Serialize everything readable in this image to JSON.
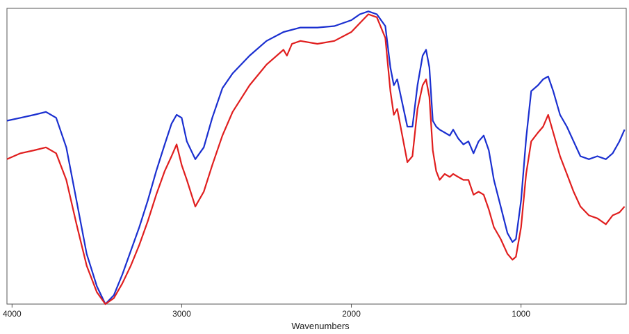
{
  "chart_data": {
    "type": "line",
    "xlabel": "Wavenumbers",
    "ylabel": "",
    "xlim": [
      4030,
      380
    ],
    "ylim": [
      0,
      100
    ],
    "x_reversed": true,
    "x_ticks": [
      4000,
      3000,
      2000,
      1000
    ],
    "x_tick_labels": [
      "4000",
      "3000",
      "2000",
      "1000"
    ],
    "y_ticks_shown": false,
    "grid": false,
    "legend": "none",
    "series": [
      {
        "color": "#1a2fd0",
        "points": [
          [
            4030,
            62
          ],
          [
            3950,
            63
          ],
          [
            3870,
            64
          ],
          [
            3800,
            65
          ],
          [
            3740,
            63
          ],
          [
            3680,
            53
          ],
          [
            3620,
            35
          ],
          [
            3560,
            17
          ],
          [
            3500,
            6
          ],
          [
            3450,
            0
          ],
          [
            3400,
            3
          ],
          [
            3350,
            10
          ],
          [
            3300,
            18
          ],
          [
            3250,
            26
          ],
          [
            3200,
            35
          ],
          [
            3150,
            45
          ],
          [
            3100,
            54
          ],
          [
            3060,
            61
          ],
          [
            3030,
            64
          ],
          [
            3000,
            63
          ],
          [
            2970,
            55
          ],
          [
            2920,
            49
          ],
          [
            2870,
            53
          ],
          [
            2820,
            63
          ],
          [
            2760,
            73
          ],
          [
            2700,
            78
          ],
          [
            2600,
            84
          ],
          [
            2500,
            89
          ],
          [
            2400,
            92
          ],
          [
            2300,
            93.5
          ],
          [
            2200,
            93.5
          ],
          [
            2100,
            94
          ],
          [
            2000,
            96
          ],
          [
            1950,
            98
          ],
          [
            1900,
            99
          ],
          [
            1850,
            98
          ],
          [
            1800,
            94
          ],
          [
            1770,
            80
          ],
          [
            1750,
            74
          ],
          [
            1730,
            76
          ],
          [
            1700,
            68
          ],
          [
            1670,
            60
          ],
          [
            1640,
            60
          ],
          [
            1610,
            74
          ],
          [
            1580,
            84
          ],
          [
            1560,
            86
          ],
          [
            1540,
            80
          ],
          [
            1520,
            62
          ],
          [
            1500,
            60
          ],
          [
            1480,
            59
          ],
          [
            1450,
            58
          ],
          [
            1420,
            57
          ],
          [
            1400,
            59
          ],
          [
            1370,
            56
          ],
          [
            1340,
            54
          ],
          [
            1310,
            55
          ],
          [
            1280,
            51
          ],
          [
            1250,
            55
          ],
          [
            1220,
            57
          ],
          [
            1190,
            52
          ],
          [
            1160,
            42
          ],
          [
            1120,
            33
          ],
          [
            1080,
            24
          ],
          [
            1050,
            21
          ],
          [
            1030,
            22
          ],
          [
            1000,
            35
          ],
          [
            970,
            56
          ],
          [
            940,
            72
          ],
          [
            900,
            74
          ],
          [
            870,
            76
          ],
          [
            840,
            77
          ],
          [
            810,
            72
          ],
          [
            770,
            64
          ],
          [
            730,
            60
          ],
          [
            690,
            55
          ],
          [
            650,
            50
          ],
          [
            600,
            49
          ],
          [
            550,
            50
          ],
          [
            500,
            49
          ],
          [
            460,
            51
          ],
          [
            420,
            55
          ],
          [
            390,
            59
          ]
        ]
      },
      {
        "color": "#e01e1e",
        "points": [
          [
            4030,
            49
          ],
          [
            3950,
            51
          ],
          [
            3870,
            52
          ],
          [
            3800,
            53
          ],
          [
            3740,
            51
          ],
          [
            3680,
            42
          ],
          [
            3620,
            27
          ],
          [
            3560,
            13
          ],
          [
            3500,
            4
          ],
          [
            3450,
            0
          ],
          [
            3400,
            2
          ],
          [
            3350,
            7
          ],
          [
            3300,
            13
          ],
          [
            3250,
            20
          ],
          [
            3200,
            28
          ],
          [
            3150,
            37
          ],
          [
            3100,
            45
          ],
          [
            3060,
            50
          ],
          [
            3030,
            54
          ],
          [
            3000,
            47
          ],
          [
            2970,
            42
          ],
          [
            2920,
            33
          ],
          [
            2870,
            38
          ],
          [
            2820,
            47
          ],
          [
            2760,
            57
          ],
          [
            2700,
            65
          ],
          [
            2600,
            74
          ],
          [
            2500,
            81
          ],
          [
            2400,
            86
          ],
          [
            2380,
            84
          ],
          [
            2350,
            88
          ],
          [
            2300,
            89
          ],
          [
            2200,
            88
          ],
          [
            2100,
            89
          ],
          [
            2000,
            92
          ],
          [
            1950,
            95
          ],
          [
            1900,
            98
          ],
          [
            1850,
            97
          ],
          [
            1800,
            90
          ],
          [
            1770,
            72
          ],
          [
            1750,
            64
          ],
          [
            1730,
            66
          ],
          [
            1700,
            57
          ],
          [
            1670,
            48
          ],
          [
            1640,
            50
          ],
          [
            1610,
            66
          ],
          [
            1580,
            74
          ],
          [
            1560,
            76
          ],
          [
            1540,
            70
          ],
          [
            1520,
            52
          ],
          [
            1500,
            45
          ],
          [
            1480,
            42
          ],
          [
            1450,
            44
          ],
          [
            1420,
            43
          ],
          [
            1400,
            44
          ],
          [
            1370,
            43
          ],
          [
            1340,
            42
          ],
          [
            1310,
            42
          ],
          [
            1280,
            37
          ],
          [
            1250,
            38
          ],
          [
            1220,
            37
          ],
          [
            1190,
            32
          ],
          [
            1160,
            26
          ],
          [
            1120,
            22
          ],
          [
            1080,
            17
          ],
          [
            1050,
            15
          ],
          [
            1030,
            16
          ],
          [
            1000,
            26
          ],
          [
            970,
            44
          ],
          [
            940,
            55
          ],
          [
            900,
            58
          ],
          [
            870,
            60
          ],
          [
            840,
            64
          ],
          [
            810,
            58
          ],
          [
            770,
            50
          ],
          [
            730,
            44
          ],
          [
            690,
            38
          ],
          [
            650,
            33
          ],
          [
            600,
            30
          ],
          [
            550,
            29
          ],
          [
            500,
            27
          ],
          [
            460,
            30
          ],
          [
            420,
            31
          ],
          [
            390,
            33
          ]
        ]
      }
    ]
  }
}
